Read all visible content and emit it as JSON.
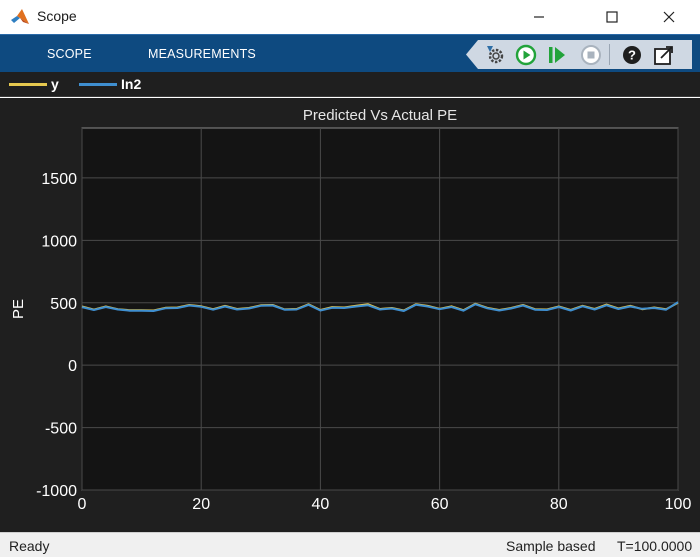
{
  "window": {
    "title": "Scope"
  },
  "toolstrip": {
    "tabs": [
      {
        "label": "SCOPE"
      },
      {
        "label": "MEASUREMENTS"
      }
    ],
    "quick_icons": [
      "settings-icon",
      "run-icon",
      "step-forward-icon",
      "stop-icon",
      "help-icon",
      "undock-icon"
    ]
  },
  "legend": [
    {
      "label": "y",
      "color": "#e6c84f"
    },
    {
      "label": "In2",
      "color": "#3f8fd0"
    }
  ],
  "status": {
    "state": "Ready",
    "mode": "Sample based",
    "time": "T=100.0000"
  },
  "colors": {
    "toolstrip": "#0e4a80",
    "plot_bg": "#141414",
    "panel_bg": "#1f1f1f",
    "grid": "#4a4a4a"
  },
  "chart_data": {
    "type": "line",
    "title": "Predicted Vs Actual PE",
    "xlabel": "",
    "ylabel": "PE",
    "xlim": [
      0,
      100
    ],
    "ylim": [
      -1000,
      1900
    ],
    "xticks": [
      0,
      20,
      40,
      60,
      80,
      100
    ],
    "yticks": [
      -1000,
      -500,
      0,
      500,
      1000,
      1500
    ],
    "grid": true,
    "legend_position": "top-left",
    "series": [
      {
        "name": "y",
        "color": "#e6c84f",
        "x": [
          0,
          2,
          4,
          6,
          8,
          10,
          12,
          14,
          16,
          18,
          20,
          22,
          24,
          26,
          28,
          30,
          32,
          34,
          36,
          38,
          40,
          42,
          44,
          46,
          48,
          50,
          52,
          54,
          56,
          58,
          60,
          62,
          64,
          66,
          68,
          70,
          72,
          74,
          76,
          78,
          80,
          82,
          84,
          86,
          88,
          90,
          92,
          94,
          96,
          98,
          100
        ],
        "values": [
          470,
          445,
          470,
          448,
          440,
          440,
          438,
          460,
          462,
          482,
          472,
          448,
          475,
          450,
          458,
          480,
          482,
          447,
          450,
          488,
          442,
          465,
          462,
          476,
          488,
          450,
          458,
          438,
          488,
          475,
          452,
          472,
          440,
          492,
          460,
          442,
          458,
          482,
          448,
          446,
          470,
          442,
          476,
          450,
          485,
          454,
          476,
          448,
          462,
          448,
          500
        ]
      },
      {
        "name": "In2",
        "color": "#3f8fd0",
        "x": [
          0,
          2,
          4,
          6,
          8,
          10,
          12,
          14,
          16,
          18,
          20,
          22,
          24,
          26,
          28,
          30,
          32,
          34,
          36,
          38,
          40,
          42,
          44,
          46,
          48,
          50,
          52,
          54,
          56,
          58,
          60,
          62,
          64,
          66,
          68,
          70,
          72,
          74,
          76,
          78,
          80,
          82,
          84,
          86,
          88,
          90,
          92,
          94,
          96,
          98,
          100
        ],
        "values": [
          465,
          442,
          466,
          446,
          436,
          436,
          434,
          456,
          458,
          478,
          468,
          444,
          470,
          446,
          454,
          476,
          478,
          444,
          446,
          484,
          438,
          460,
          458,
          470,
          480,
          446,
          454,
          434,
          484,
          470,
          448,
          466,
          436,
          488,
          456,
          438,
          454,
          478,
          444,
          442,
          466,
          438,
          472,
          446,
          480,
          450,
          470,
          452,
          458,
          444,
          505
        ]
      }
    ]
  }
}
